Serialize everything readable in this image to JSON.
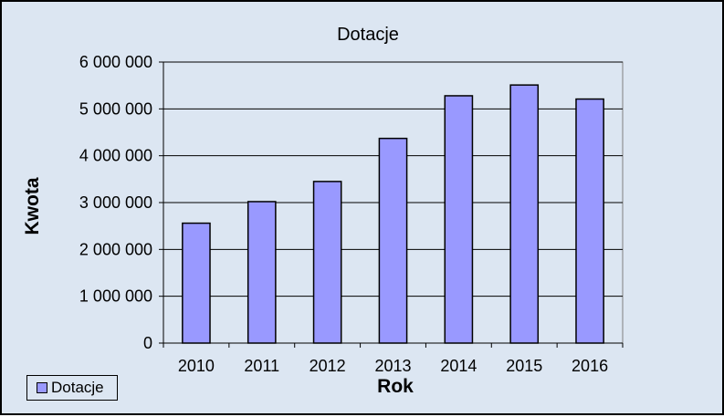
{
  "colors": {
    "background": "#dce6f2",
    "plot_area": "#dce6f2",
    "bar_fill": "#9999ff",
    "bar_stroke": "#000000",
    "gridline": "#000000"
  },
  "legend": {
    "label": "Dotacje",
    "placement": "bottom-left"
  },
  "chart_data": {
    "type": "bar",
    "title": "Dotacje",
    "xlabel": "Rok",
    "ylabel": "Kwota",
    "categories": [
      "2010",
      "2011",
      "2012",
      "2013",
      "2014",
      "2015",
      "2016"
    ],
    "series": [
      {
        "name": "Dotacje",
        "values": [
          2560000,
          3020000,
          3450000,
          4370000,
          5280000,
          5510000,
          5210000
        ]
      }
    ],
    "ylim": [
      0,
      6000000
    ],
    "yticks": [
      0,
      1000000,
      2000000,
      3000000,
      4000000,
      5000000,
      6000000
    ],
    "ytick_labels": [
      "0",
      "1 000 000",
      "2 000 000",
      "3 000 000",
      "4 000 000",
      "5 000 000",
      "6 000 000"
    ],
    "grid": true,
    "legend_position": "bottom-left"
  }
}
